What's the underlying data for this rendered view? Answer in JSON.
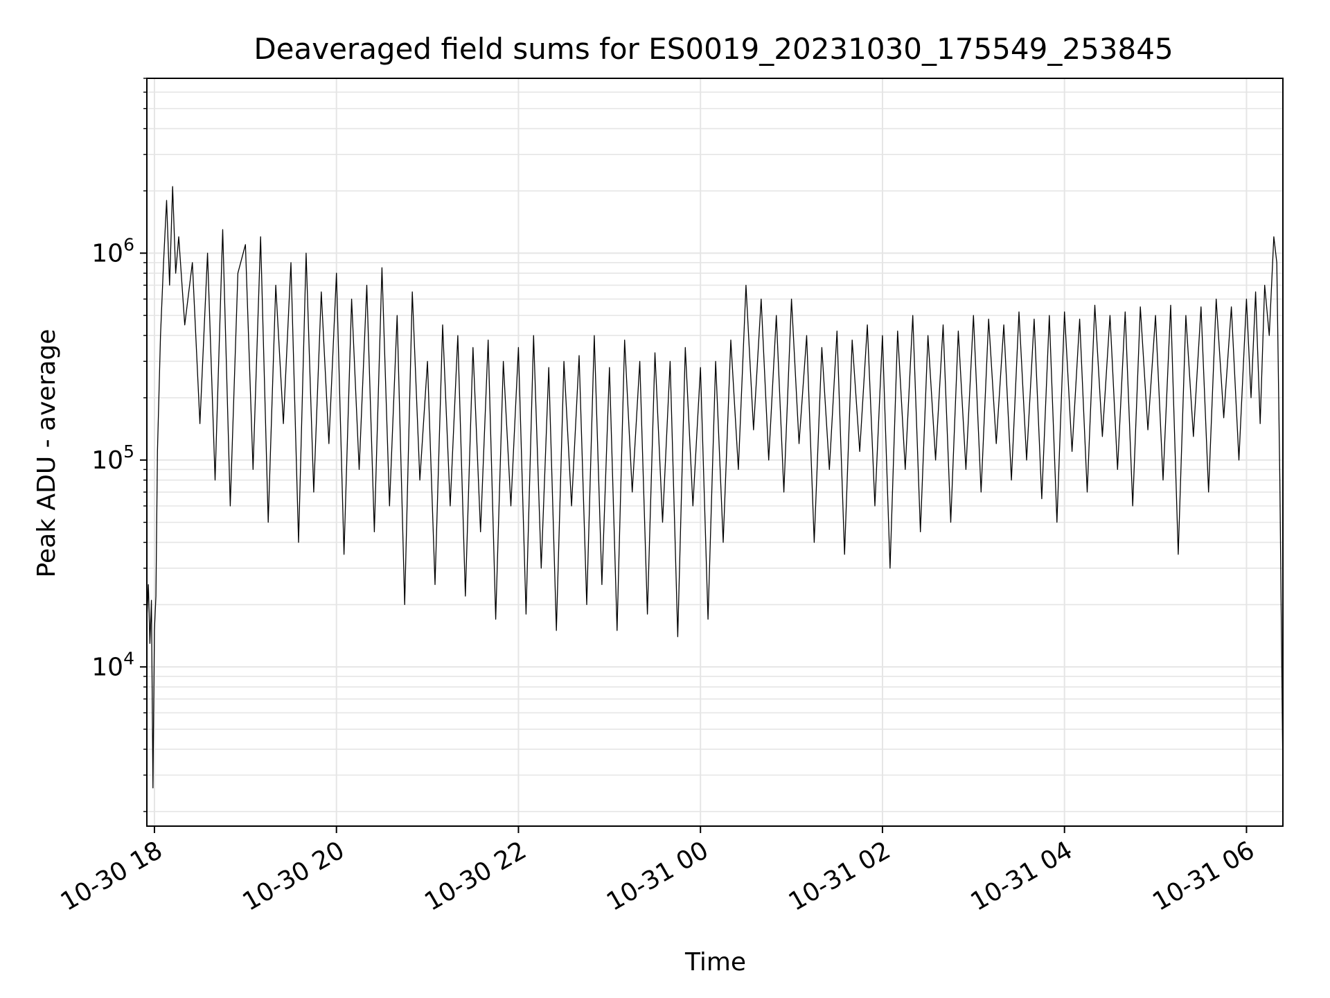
{
  "chart_data": {
    "type": "line",
    "title": "Deaveraged field sums for ES0019_20231030_175549_253845",
    "xlabel": "Time",
    "ylabel": "Peak ADU - average",
    "x_type": "time",
    "y_scale": "log",
    "xlim": [
      "2023-10-30 17:55",
      "2023-10-31 06:24"
    ],
    "ylim": [
      1700,
      7000000
    ],
    "grid": true,
    "line_color": "#000000",
    "grid_color": "#e5e5e5",
    "x_ticks": [
      {
        "label": "10-30 18",
        "time": "2023-10-30 18:00"
      },
      {
        "label": "10-30 20",
        "time": "2023-10-30 20:00"
      },
      {
        "label": "10-30 22",
        "time": "2023-10-30 22:00"
      },
      {
        "label": "10-31 00",
        "time": "2023-10-31 00:00"
      },
      {
        "label": "10-31 02",
        "time": "2023-10-31 02:00"
      },
      {
        "label": "10-31 04",
        "time": "2023-10-31 04:00"
      },
      {
        "label": "10-31 06",
        "time": "2023-10-31 06:00"
      }
    ],
    "y_ticks": [
      {
        "value": 10000,
        "base": "10",
        "exp": "4"
      },
      {
        "value": 100000,
        "base": "10",
        "exp": "5"
      },
      {
        "value": 1000000,
        "base": "10",
        "exp": "6"
      }
    ],
    "series": [
      {
        "x": [
          "2023-10-30 17:55",
          "2023-10-30 17:56",
          "2023-10-30 17:57",
          "2023-10-30 17:58",
          "2023-10-30 17:59",
          "2023-10-30 18:00",
          "2023-10-30 18:01",
          "2023-10-30 18:02",
          "2023-10-30 18:04",
          "2023-10-30 18:06",
          "2023-10-30 18:08",
          "2023-10-30 18:10",
          "2023-10-30 18:12",
          "2023-10-30 18:14",
          "2023-10-30 18:16",
          "2023-10-30 18:20",
          "2023-10-30 18:25",
          "2023-10-30 18:30",
          "2023-10-30 18:35",
          "2023-10-30 18:40",
          "2023-10-30 18:45",
          "2023-10-30 18:50",
          "2023-10-30 18:55",
          "2023-10-30 19:00",
          "2023-10-30 19:05",
          "2023-10-30 19:10",
          "2023-10-30 19:15",
          "2023-10-30 19:20",
          "2023-10-30 19:25",
          "2023-10-30 19:30",
          "2023-10-30 19:35",
          "2023-10-30 19:40",
          "2023-10-30 19:45",
          "2023-10-30 19:50",
          "2023-10-30 19:55",
          "2023-10-30 20:00",
          "2023-10-30 20:05",
          "2023-10-30 20:10",
          "2023-10-30 20:15",
          "2023-10-30 20:20",
          "2023-10-30 20:25",
          "2023-10-30 20:30",
          "2023-10-30 20:35",
          "2023-10-30 20:40",
          "2023-10-30 20:45",
          "2023-10-30 20:50",
          "2023-10-30 20:55",
          "2023-10-30 21:00",
          "2023-10-30 21:05",
          "2023-10-30 21:10",
          "2023-10-30 21:15",
          "2023-10-30 21:20",
          "2023-10-30 21:25",
          "2023-10-30 21:30",
          "2023-10-30 21:35",
          "2023-10-30 21:40",
          "2023-10-30 21:45",
          "2023-10-30 21:50",
          "2023-10-30 21:55",
          "2023-10-30 22:00",
          "2023-10-30 22:05",
          "2023-10-30 22:10",
          "2023-10-30 22:15",
          "2023-10-30 22:20",
          "2023-10-30 22:25",
          "2023-10-30 22:30",
          "2023-10-30 22:35",
          "2023-10-30 22:40",
          "2023-10-30 22:45",
          "2023-10-30 22:50",
          "2023-10-30 22:55",
          "2023-10-30 23:00",
          "2023-10-30 23:05",
          "2023-10-30 23:10",
          "2023-10-30 23:15",
          "2023-10-30 23:20",
          "2023-10-30 23:25",
          "2023-10-30 23:30",
          "2023-10-30 23:35",
          "2023-10-30 23:40",
          "2023-10-30 23:45",
          "2023-10-30 23:50",
          "2023-10-30 23:55",
          "2023-10-31 00:00",
          "2023-10-31 00:05",
          "2023-10-31 00:10",
          "2023-10-31 00:15",
          "2023-10-31 00:20",
          "2023-10-31 00:25",
          "2023-10-31 00:30",
          "2023-10-31 00:35",
          "2023-10-31 00:40",
          "2023-10-31 00:45",
          "2023-10-31 00:50",
          "2023-10-31 00:55",
          "2023-10-31 01:00",
          "2023-10-31 01:05",
          "2023-10-31 01:10",
          "2023-10-31 01:15",
          "2023-10-31 01:20",
          "2023-10-31 01:25",
          "2023-10-31 01:30",
          "2023-10-31 01:35",
          "2023-10-31 01:40",
          "2023-10-31 01:45",
          "2023-10-31 01:50",
          "2023-10-31 01:55",
          "2023-10-31 02:00",
          "2023-10-31 02:05",
          "2023-10-31 02:10",
          "2023-10-31 02:15",
          "2023-10-31 02:20",
          "2023-10-31 02:25",
          "2023-10-31 02:30",
          "2023-10-31 02:35",
          "2023-10-31 02:40",
          "2023-10-31 02:45",
          "2023-10-31 02:50",
          "2023-10-31 02:55",
          "2023-10-31 03:00",
          "2023-10-31 03:05",
          "2023-10-31 03:10",
          "2023-10-31 03:15",
          "2023-10-31 03:20",
          "2023-10-31 03:25",
          "2023-10-31 03:30",
          "2023-10-31 03:35",
          "2023-10-31 03:40",
          "2023-10-31 03:45",
          "2023-10-31 03:50",
          "2023-10-31 03:55",
          "2023-10-31 04:00",
          "2023-10-31 04:05",
          "2023-10-31 04:10",
          "2023-10-31 04:15",
          "2023-10-31 04:20",
          "2023-10-31 04:25",
          "2023-10-31 04:30",
          "2023-10-31 04:35",
          "2023-10-31 04:40",
          "2023-10-31 04:45",
          "2023-10-31 04:50",
          "2023-10-31 04:55",
          "2023-10-31 05:00",
          "2023-10-31 05:05",
          "2023-10-31 05:10",
          "2023-10-31 05:15",
          "2023-10-31 05:20",
          "2023-10-31 05:25",
          "2023-10-31 05:30",
          "2023-10-31 05:35",
          "2023-10-31 05:40",
          "2023-10-31 05:45",
          "2023-10-31 05:50",
          "2023-10-31 05:55",
          "2023-10-31 06:00",
          "2023-10-31 06:03",
          "2023-10-31 06:06",
          "2023-10-31 06:09",
          "2023-10-31 06:12",
          "2023-10-31 06:15",
          "2023-10-31 06:18",
          "2023-10-31 06:20",
          "2023-10-31 06:22",
          "2023-10-31 06:24"
        ],
        "y": [
          17000,
          25000,
          13000,
          21000,
          2600,
          15000,
          22000,
          110000,
          400000,
          900000,
          1800000,
          700000,
          2100000,
          800000,
          1200000,
          450000,
          900000,
          150000,
          1000000,
          80000,
          1300000,
          60000,
          800000,
          1100000,
          90000,
          1200000,
          50000,
          700000,
          150000,
          900000,
          40000,
          1000000,
          70000,
          650000,
          120000,
          800000,
          35000,
          600000,
          90000,
          700000,
          45000,
          850000,
          60000,
          500000,
          20000,
          650000,
          80000,
          300000,
          25000,
          450000,
          60000,
          400000,
          22000,
          350000,
          45000,
          380000,
          17000,
          300000,
          60000,
          350000,
          18000,
          400000,
          30000,
          280000,
          15000,
          300000,
          60000,
          320000,
          20000,
          400000,
          25000,
          280000,
          15000,
          380000,
          70000,
          300000,
          18000,
          330000,
          50000,
          300000,
          14000,
          350000,
          60000,
          280000,
          17000,
          300000,
          40000,
          380000,
          90000,
          700000,
          140000,
          600000,
          100000,
          500000,
          70000,
          600000,
          120000,
          400000,
          40000,
          350000,
          90000,
          420000,
          35000,
          380000,
          110000,
          450000,
          60000,
          400000,
          30000,
          420000,
          90000,
          500000,
          45000,
          400000,
          100000,
          450000,
          50000,
          420000,
          90000,
          500000,
          70000,
          480000,
          120000,
          450000,
          80000,
          520000,
          100000,
          480000,
          65000,
          500000,
          50000,
          520000,
          110000,
          480000,
          70000,
          560000,
          130000,
          500000,
          90000,
          520000,
          60000,
          550000,
          140000,
          500000,
          80000,
          560000,
          35000,
          500000,
          130000,
          550000,
          70000,
          600000,
          160000,
          550000,
          100000,
          600000,
          200000,
          650000,
          150000,
          700000,
          400000,
          1200000,
          900000,
          80000,
          3000
        ]
      }
    ]
  }
}
